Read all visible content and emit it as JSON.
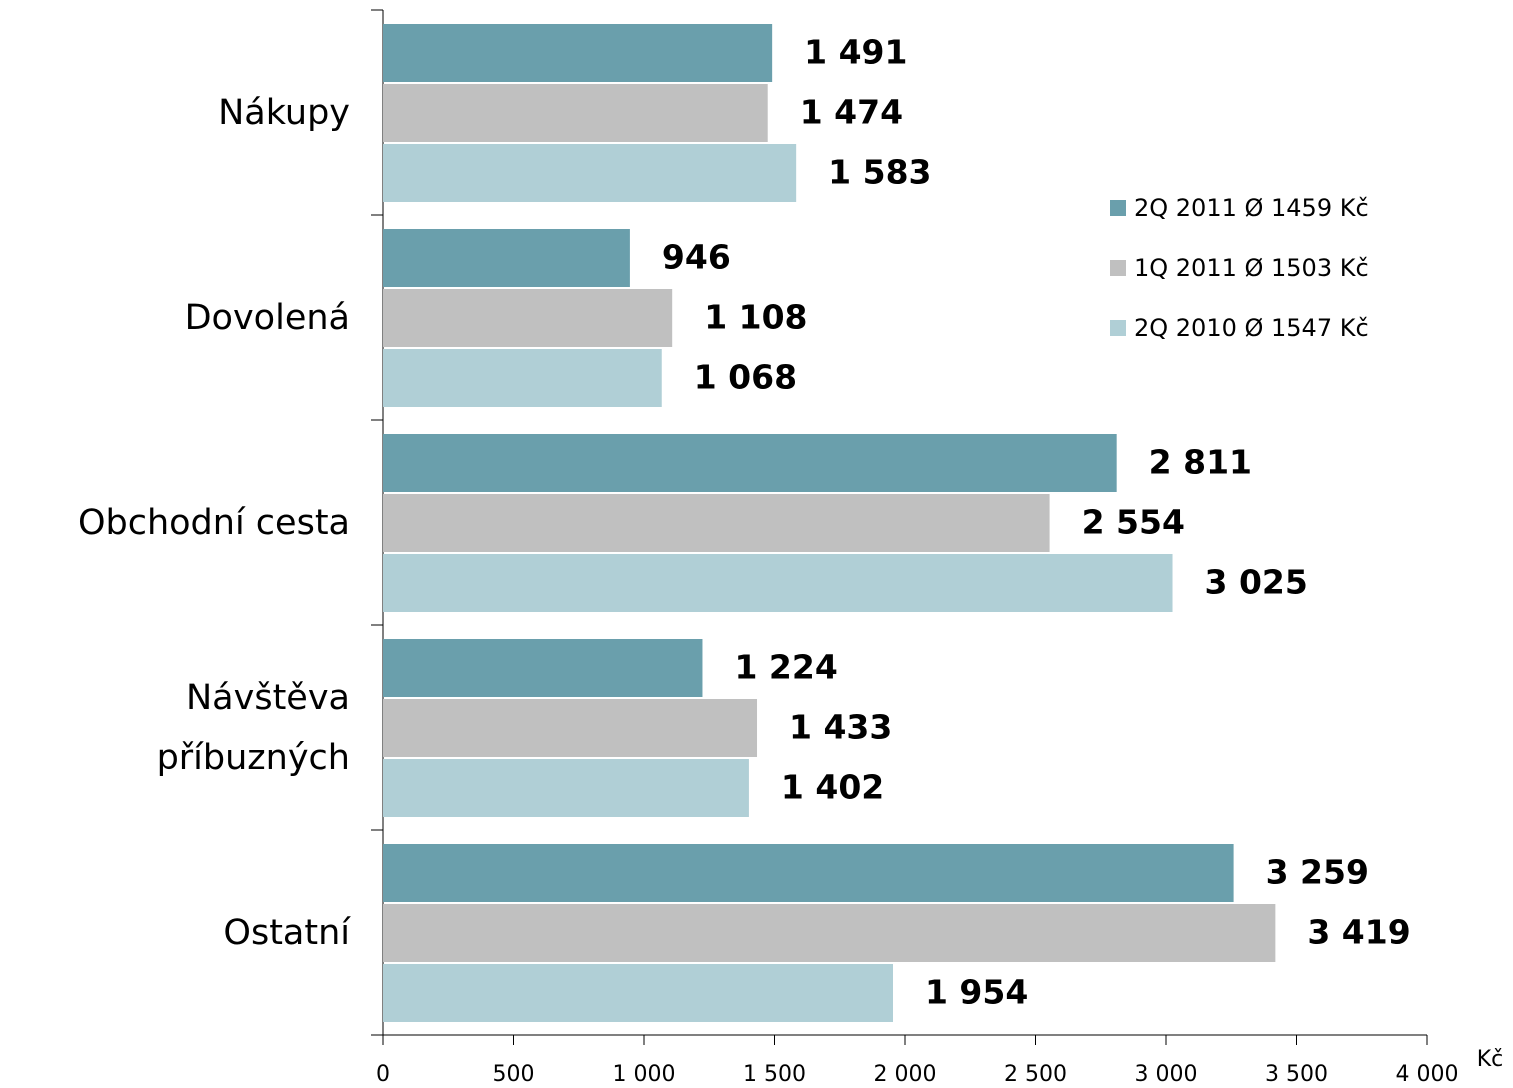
{
  "chart_data": {
    "type": "hbar",
    "categories": [
      "Nákupy",
      "Dovolená",
      "Obchodní cesta",
      "Návštěva příbuzných",
      "Ostatní"
    ],
    "series": [
      {
        "name": "2Q 2011 Ø 1459 Kč",
        "color": "#6a9fac",
        "values": [
          1491,
          946,
          2811,
          1224,
          3259
        ],
        "value_labels": [
          "1 491",
          "946",
          "2 811",
          "1 224",
          "3 259"
        ]
      },
      {
        "name": "1Q 2011 Ø 1503 Kč",
        "color": "#c0c0c0",
        "values": [
          1474,
          1108,
          2554,
          1433,
          3419
        ],
        "value_labels": [
          "1 474",
          "1 108",
          "2 554",
          "1 433",
          "3 419"
        ]
      },
      {
        "name": "2Q 2010 Ø 1547 Kč",
        "color": "#b0cfd6",
        "values": [
          1583,
          1068,
          3025,
          1402,
          1954
        ],
        "value_labels": [
          "1 583",
          "1 068",
          "3 025",
          "1 402",
          "1 954"
        ]
      }
    ],
    "x_label": "Kč",
    "xlim": [
      0,
      4000
    ],
    "xticks": [
      0,
      500,
      {
        "value": 1000,
        "label": "1 000"
      },
      {
        "value": 1500,
        "label": "1 500"
      },
      {
        "value": 2000,
        "label": "2 000"
      },
      {
        "value": 2500,
        "label": "2 500"
      },
      {
        "value": 3000,
        "label": "3 000"
      },
      {
        "value": 3500,
        "label": "3 500"
      },
      {
        "value": 4000,
        "label": "4 000"
      }
    ],
    "legend": "right"
  }
}
